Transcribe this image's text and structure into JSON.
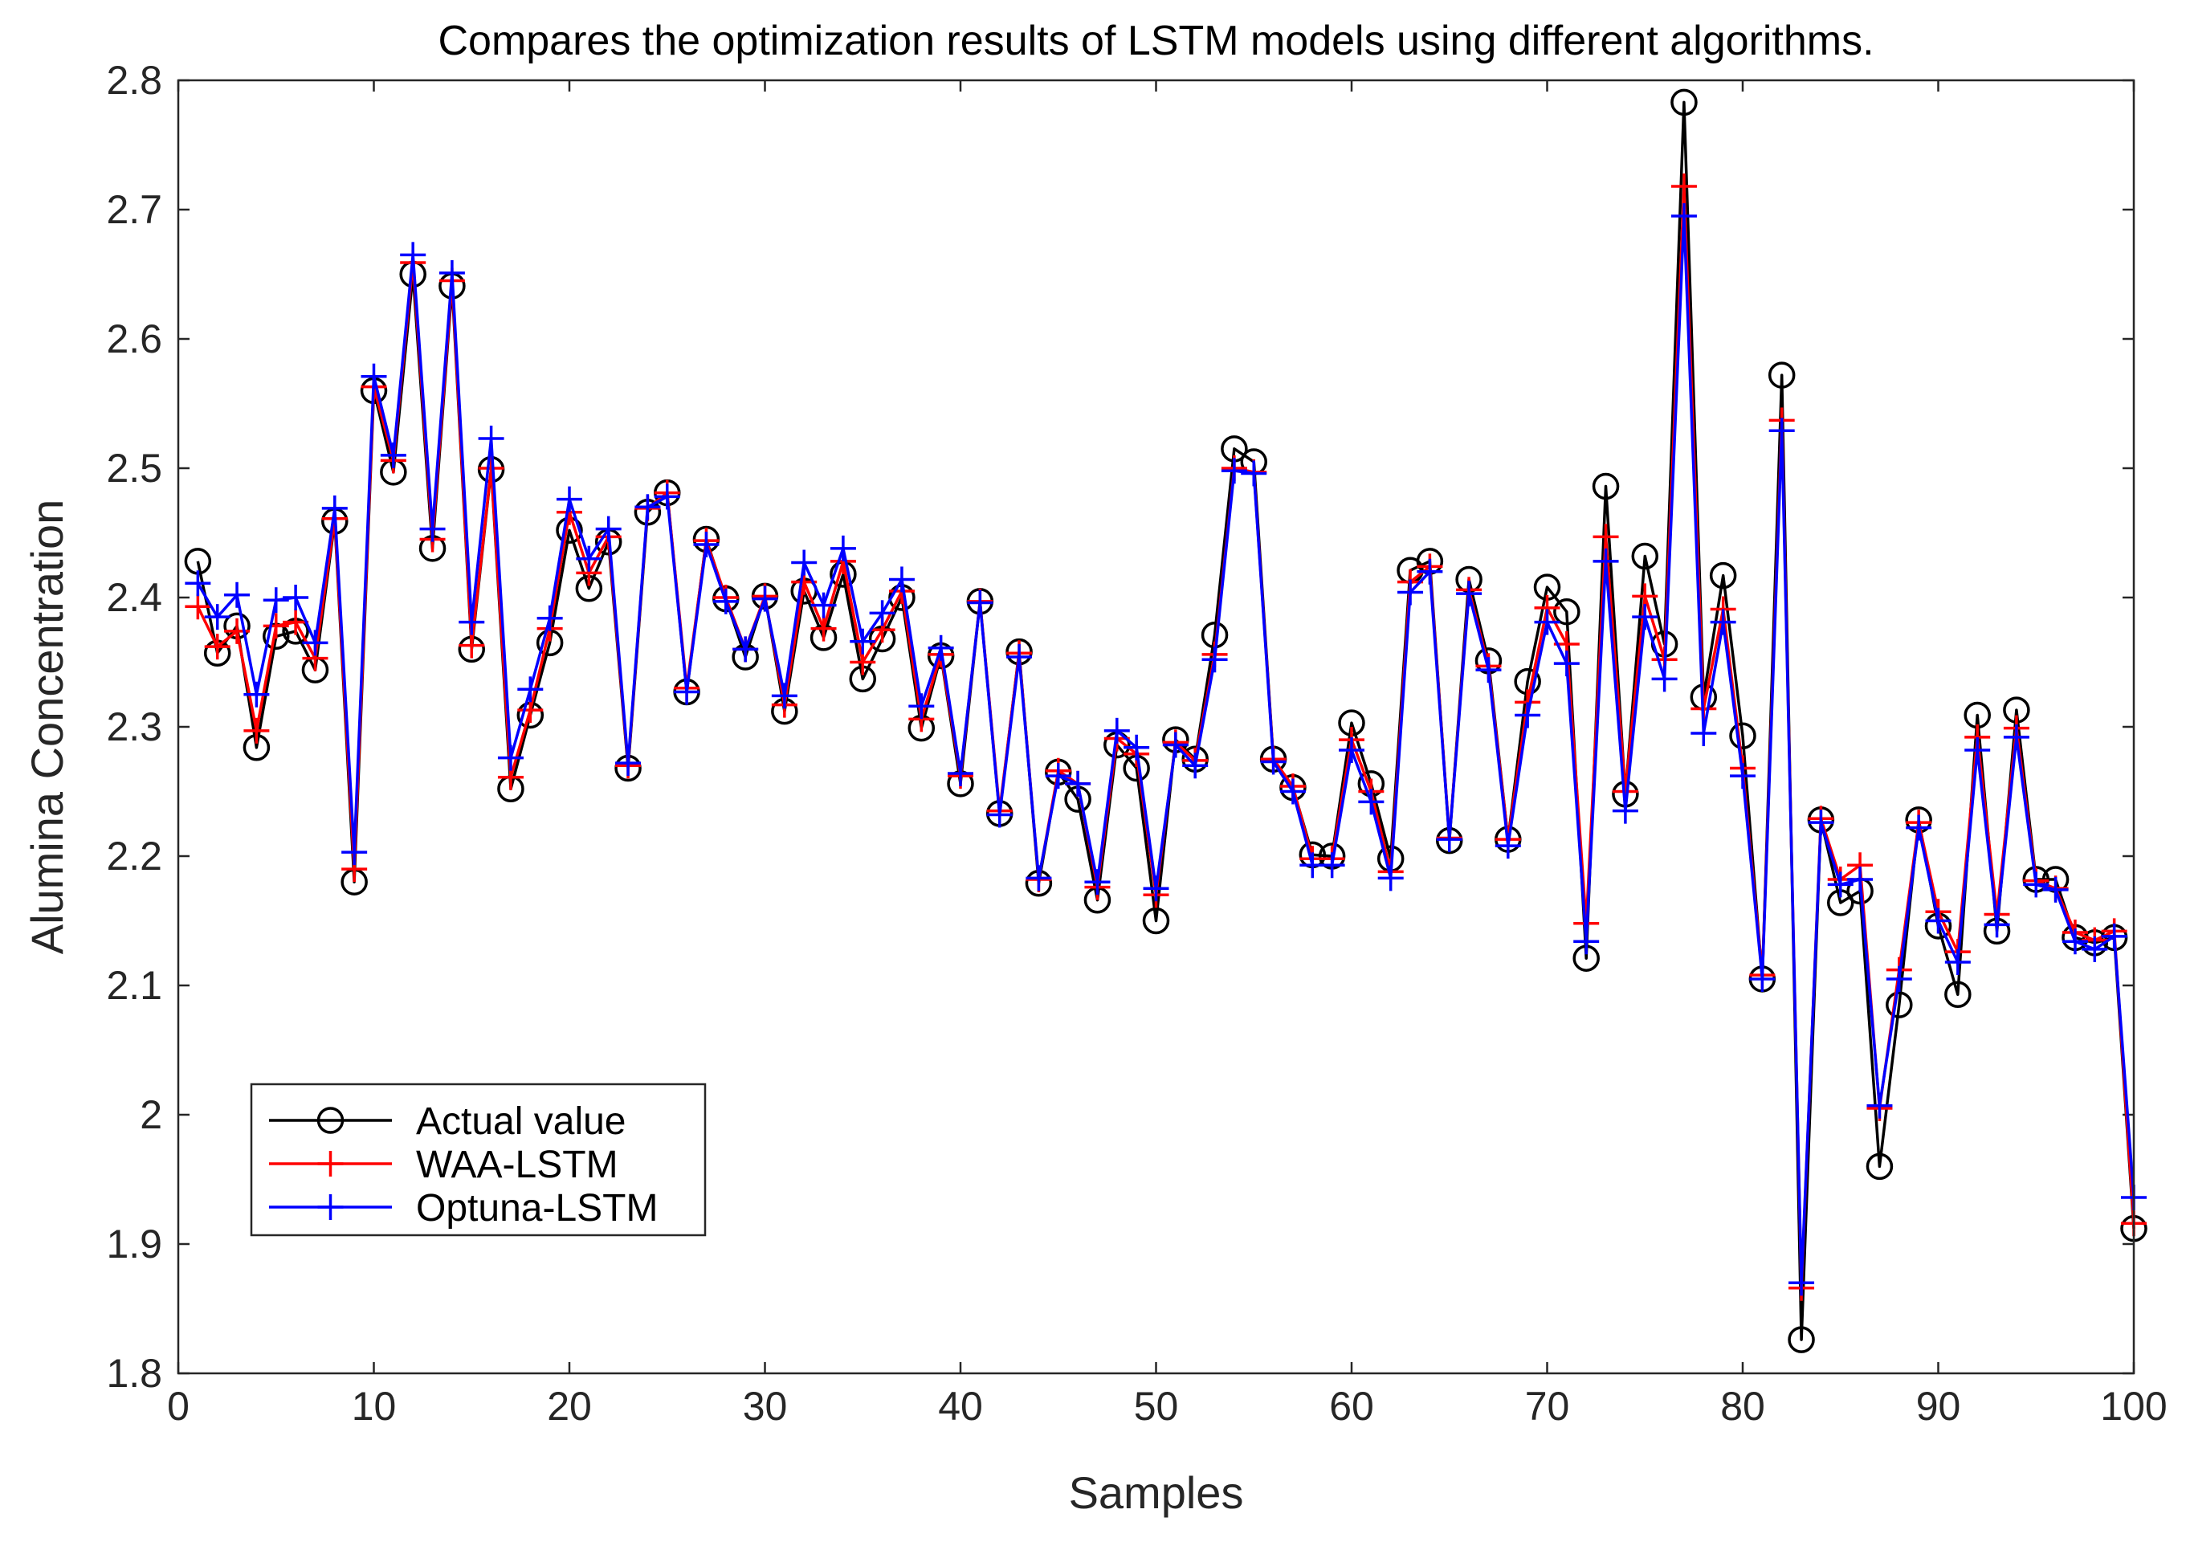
{
  "chart_data": {
    "type": "line",
    "title": "Compares the optimization results of LSTM models using different algorithms.",
    "xlabel": "Samples",
    "ylabel": "Alumina Concentration",
    "xlim": [
      0,
      100
    ],
    "ylim": [
      1.8,
      2.8
    ],
    "xticks": [
      "0",
      "10",
      "20",
      "30",
      "40",
      "50",
      "60",
      "70",
      "80",
      "90",
      "100"
    ],
    "yticks": [
      "1.8",
      "1.9",
      "2",
      "2.1",
      "2.2",
      "2.3",
      "2.4",
      "2.5",
      "2.6",
      "2.7",
      "2.8"
    ],
    "legend_position": "bottom-left",
    "x": [
      1,
      2,
      3,
      4,
      5,
      6,
      7,
      8,
      9,
      10,
      11,
      12,
      13,
      14,
      15,
      16,
      17,
      18,
      19,
      20,
      21,
      22,
      23,
      24,
      25,
      26,
      27,
      28,
      29,
      30,
      31,
      32,
      33,
      34,
      35,
      36,
      37,
      38,
      39,
      40,
      41,
      42,
      43,
      44,
      45,
      46,
      47,
      48,
      49,
      50,
      51,
      52,
      53,
      54,
      55,
      56,
      57,
      58,
      59,
      60,
      61,
      62,
      63,
      64,
      65,
      66,
      67,
      68,
      69,
      70,
      71,
      72,
      73,
      74,
      75,
      76,
      77,
      78,
      79,
      80,
      81,
      82,
      83,
      84,
      85,
      86,
      87,
      88,
      89,
      90,
      91,
      92,
      93,
      94,
      95,
      96,
      97,
      98,
      99,
      100
    ],
    "series": [
      {
        "name": "Actual value",
        "color": "#000000",
        "marker": "circle",
        "values": [
          2.428,
          2.357,
          2.378,
          2.284,
          2.37,
          2.374,
          2.344,
          2.459,
          2.18,
          2.56,
          2.497,
          2.65,
          2.438,
          2.641,
          2.36,
          2.499,
          2.252,
          2.309,
          2.365,
          2.452,
          2.407,
          2.443,
          2.268,
          2.466,
          2.481,
          2.327,
          2.445,
          2.399,
          2.354,
          2.401,
          2.312,
          2.405,
          2.369,
          2.418,
          2.337,
          2.368,
          2.4,
          2.299,
          2.355,
          2.256,
          2.397,
          2.233,
          2.358,
          2.179,
          2.265,
          2.244,
          2.166,
          2.286,
          2.268,
          2.15,
          2.29,
          2.275,
          2.371,
          2.515,
          2.505,
          2.275,
          2.253,
          2.201,
          2.2,
          2.303,
          2.256,
          2.198,
          2.421,
          2.428,
          2.212,
          2.414,
          2.351,
          2.213,
          2.335,
          2.408,
          2.389,
          2.121,
          2.486,
          2.248,
          2.432,
          2.364,
          2.783,
          2.323,
          2.417,
          2.293,
          2.105,
          2.572,
          1.826,
          2.228,
          2.164,
          2.173,
          1.96,
          2.085,
          2.228,
          2.146,
          2.093,
          2.309,
          2.142,
          2.313,
          2.182,
          2.182,
          2.137,
          2.133,
          2.137,
          1.912
        ]
      },
      {
        "name": "WAA-LSTM",
        "color": "#ff0000",
        "marker": "plus",
        "values": [
          2.393,
          2.362,
          2.374,
          2.297,
          2.378,
          2.381,
          2.353,
          2.461,
          2.19,
          2.563,
          2.506,
          2.659,
          2.445,
          2.645,
          2.363,
          2.5,
          2.261,
          2.313,
          2.376,
          2.466,
          2.419,
          2.447,
          2.27,
          2.469,
          2.481,
          2.33,
          2.444,
          2.4,
          2.36,
          2.401,
          2.317,
          2.412,
          2.376,
          2.428,
          2.35,
          2.375,
          2.405,
          2.306,
          2.356,
          2.262,
          2.397,
          2.235,
          2.357,
          2.182,
          2.266,
          2.256,
          2.176,
          2.291,
          2.279,
          2.17,
          2.288,
          2.274,
          2.356,
          2.5,
          2.497,
          2.275,
          2.254,
          2.198,
          2.198,
          2.29,
          2.25,
          2.188,
          2.412,
          2.424,
          2.214,
          2.406,
          2.347,
          2.213,
          2.319,
          2.392,
          2.364,
          2.148,
          2.447,
          2.25,
          2.401,
          2.352,
          2.718,
          2.314,
          2.391,
          2.268,
          2.108,
          2.537,
          1.866,
          2.229,
          2.182,
          2.193,
          2.005,
          2.112,
          2.226,
          2.157,
          2.126,
          2.292,
          2.155,
          2.299,
          2.181,
          2.175,
          2.141,
          2.135,
          2.142,
          1.916
        ]
      },
      {
        "name": "Optuna-LSTM",
        "color": "#0000ff",
        "marker": "plus",
        "values": [
          2.411,
          2.385,
          2.402,
          2.325,
          2.398,
          2.4,
          2.365,
          2.469,
          2.203,
          2.571,
          2.51,
          2.665,
          2.453,
          2.651,
          2.381,
          2.523,
          2.276,
          2.329,
          2.384,
          2.476,
          2.43,
          2.453,
          2.272,
          2.47,
          2.478,
          2.327,
          2.441,
          2.397,
          2.36,
          2.399,
          2.324,
          2.427,
          2.394,
          2.438,
          2.366,
          2.388,
          2.414,
          2.316,
          2.361,
          2.264,
          2.396,
          2.232,
          2.354,
          2.183,
          2.262,
          2.256,
          2.18,
          2.297,
          2.284,
          2.175,
          2.286,
          2.27,
          2.352,
          2.498,
          2.496,
          2.273,
          2.25,
          2.193,
          2.193,
          2.282,
          2.242,
          2.183,
          2.404,
          2.42,
          2.213,
          2.403,
          2.344,
          2.208,
          2.309,
          2.381,
          2.349,
          2.134,
          2.428,
          2.235,
          2.385,
          2.337,
          2.695,
          2.295,
          2.381,
          2.262,
          2.105,
          2.529,
          1.87,
          2.226,
          2.178,
          2.182,
          2.007,
          2.105,
          2.222,
          2.15,
          2.118,
          2.282,
          2.147,
          2.292,
          2.178,
          2.174,
          2.134,
          2.128,
          2.138,
          1.936
        ]
      }
    ]
  }
}
